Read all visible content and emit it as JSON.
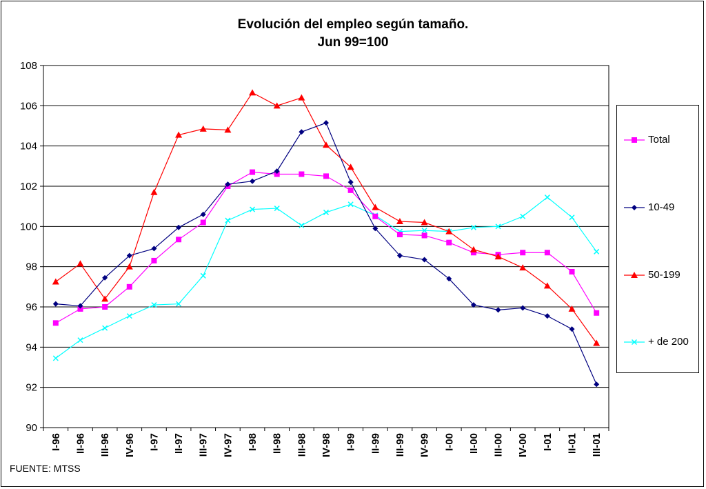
{
  "chart_data": {
    "type": "line",
    "title": "Evolución del empleo según tamaño.",
    "subtitle": "Jun 99=100",
    "source": "FUENTE: MTSS",
    "xlabel": "",
    "ylabel": "",
    "ylim": [
      90,
      108
    ],
    "yticks": [
      "90",
      "92",
      "94",
      "96",
      "98",
      "100",
      "102",
      "104",
      "106",
      "108"
    ],
    "grid": true,
    "legend_position": "right",
    "categories": [
      "I-96",
      "II-96",
      "III-96",
      "IV-96",
      "I-97",
      "II-97",
      "III-97",
      "IV-97",
      "I-98",
      "II-98",
      "III-98",
      "IV-98",
      "I-99",
      "II-99",
      "III-99",
      "IV-99",
      "I-00",
      "II-00",
      "III-00",
      "IV-00",
      "I-01",
      "II-01",
      "III-01"
    ],
    "series": [
      {
        "name": "Total",
        "color": "#ff00ff",
        "marker": "square",
        "values": [
          95.2,
          95.9,
          96.0,
          97.0,
          98.3,
          99.35,
          100.2,
          102.0,
          102.7,
          102.6,
          102.6,
          102.5,
          101.8,
          100.5,
          99.6,
          99.55,
          99.2,
          98.7,
          98.6,
          98.7,
          98.7,
          97.75,
          95.7
        ]
      },
      {
        "name": "10-49",
        "color": "#000080",
        "marker": "diamond",
        "values": [
          96.15,
          96.05,
          97.45,
          98.55,
          98.9,
          99.95,
          100.6,
          102.1,
          102.25,
          102.75,
          104.7,
          105.15,
          102.2,
          99.9,
          98.55,
          98.35,
          97.4,
          96.1,
          95.85,
          95.95,
          95.55,
          94.9,
          92.15
        ]
      },
      {
        "name": "50-199",
        "color": "#ff0000",
        "marker": "triangle",
        "values": [
          97.25,
          98.15,
          96.4,
          98.0,
          101.7,
          104.55,
          104.85,
          104.8,
          106.65,
          106.0,
          106.4,
          104.05,
          102.95,
          100.95,
          100.25,
          100.2,
          99.75,
          98.85,
          98.5,
          97.95,
          97.05,
          95.9,
          94.2
        ]
      },
      {
        "name": "+ de 200",
        "color": "#00ffff",
        "marker": "x",
        "values": [
          93.45,
          94.35,
          94.95,
          95.55,
          96.1,
          96.15,
          97.55,
          100.3,
          100.85,
          100.9,
          100.05,
          100.7,
          101.1,
          100.55,
          99.75,
          99.8,
          99.75,
          99.95,
          100.0,
          100.5,
          101.45,
          100.45,
          98.75
        ]
      }
    ]
  }
}
